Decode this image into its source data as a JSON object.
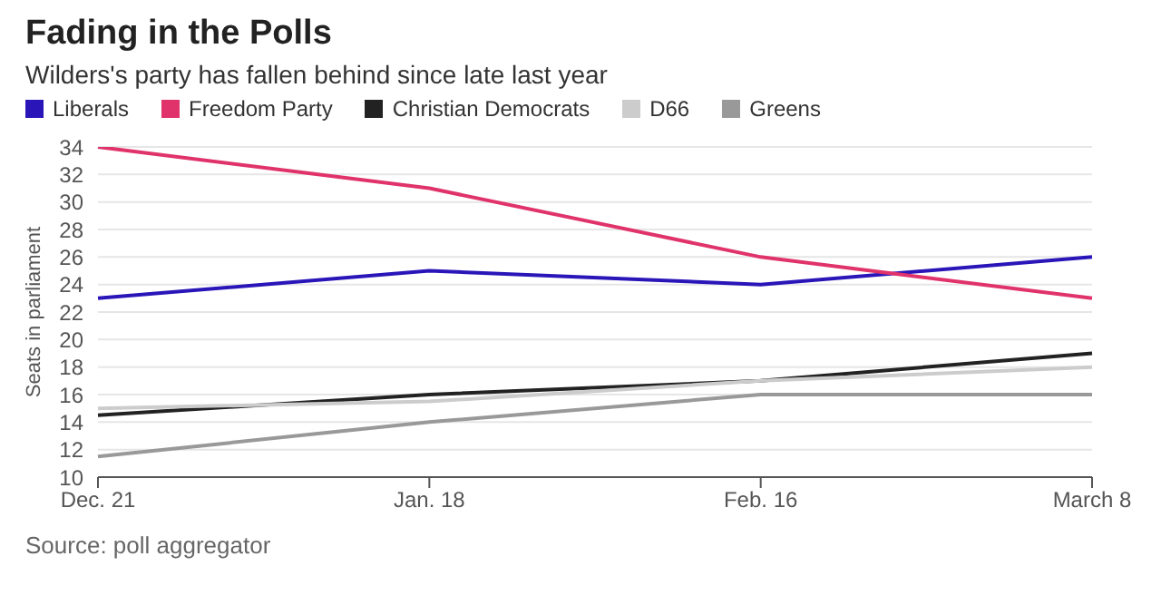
{
  "chart_data": {
    "type": "line",
    "title": "Fading in the Polls",
    "subtitle": "Wilders's party has fallen behind since late last year",
    "ylabel": "Seats in parliament",
    "categories": [
      "Dec. 21",
      "Jan. 18",
      "Feb. 16",
      "March 8"
    ],
    "series": [
      {
        "name": "Liberals",
        "color": "#2a16b8",
        "values": [
          23,
          25,
          24,
          26
        ]
      },
      {
        "name": "Freedom Party",
        "color": "#e0336b",
        "values": [
          34,
          31,
          26,
          23
        ]
      },
      {
        "name": "Christian Democrats",
        "color": "#222222",
        "values": [
          14.5,
          16,
          17,
          19
        ]
      },
      {
        "name": "D66",
        "color": "#cccccc",
        "values": [
          15,
          15.5,
          17,
          18
        ]
      },
      {
        "name": "Greens",
        "color": "#999999",
        "values": [
          11.5,
          14,
          16,
          16
        ]
      }
    ],
    "ylim": [
      10,
      34
    ],
    "yticks": [
      10,
      12,
      14,
      16,
      18,
      20,
      22,
      24,
      26,
      28,
      30,
      32,
      34
    ],
    "grid": "y",
    "legend": "top left",
    "marker": "none",
    "line_style": "solid",
    "annotations": [
      "Source: poll aggregator"
    ]
  }
}
